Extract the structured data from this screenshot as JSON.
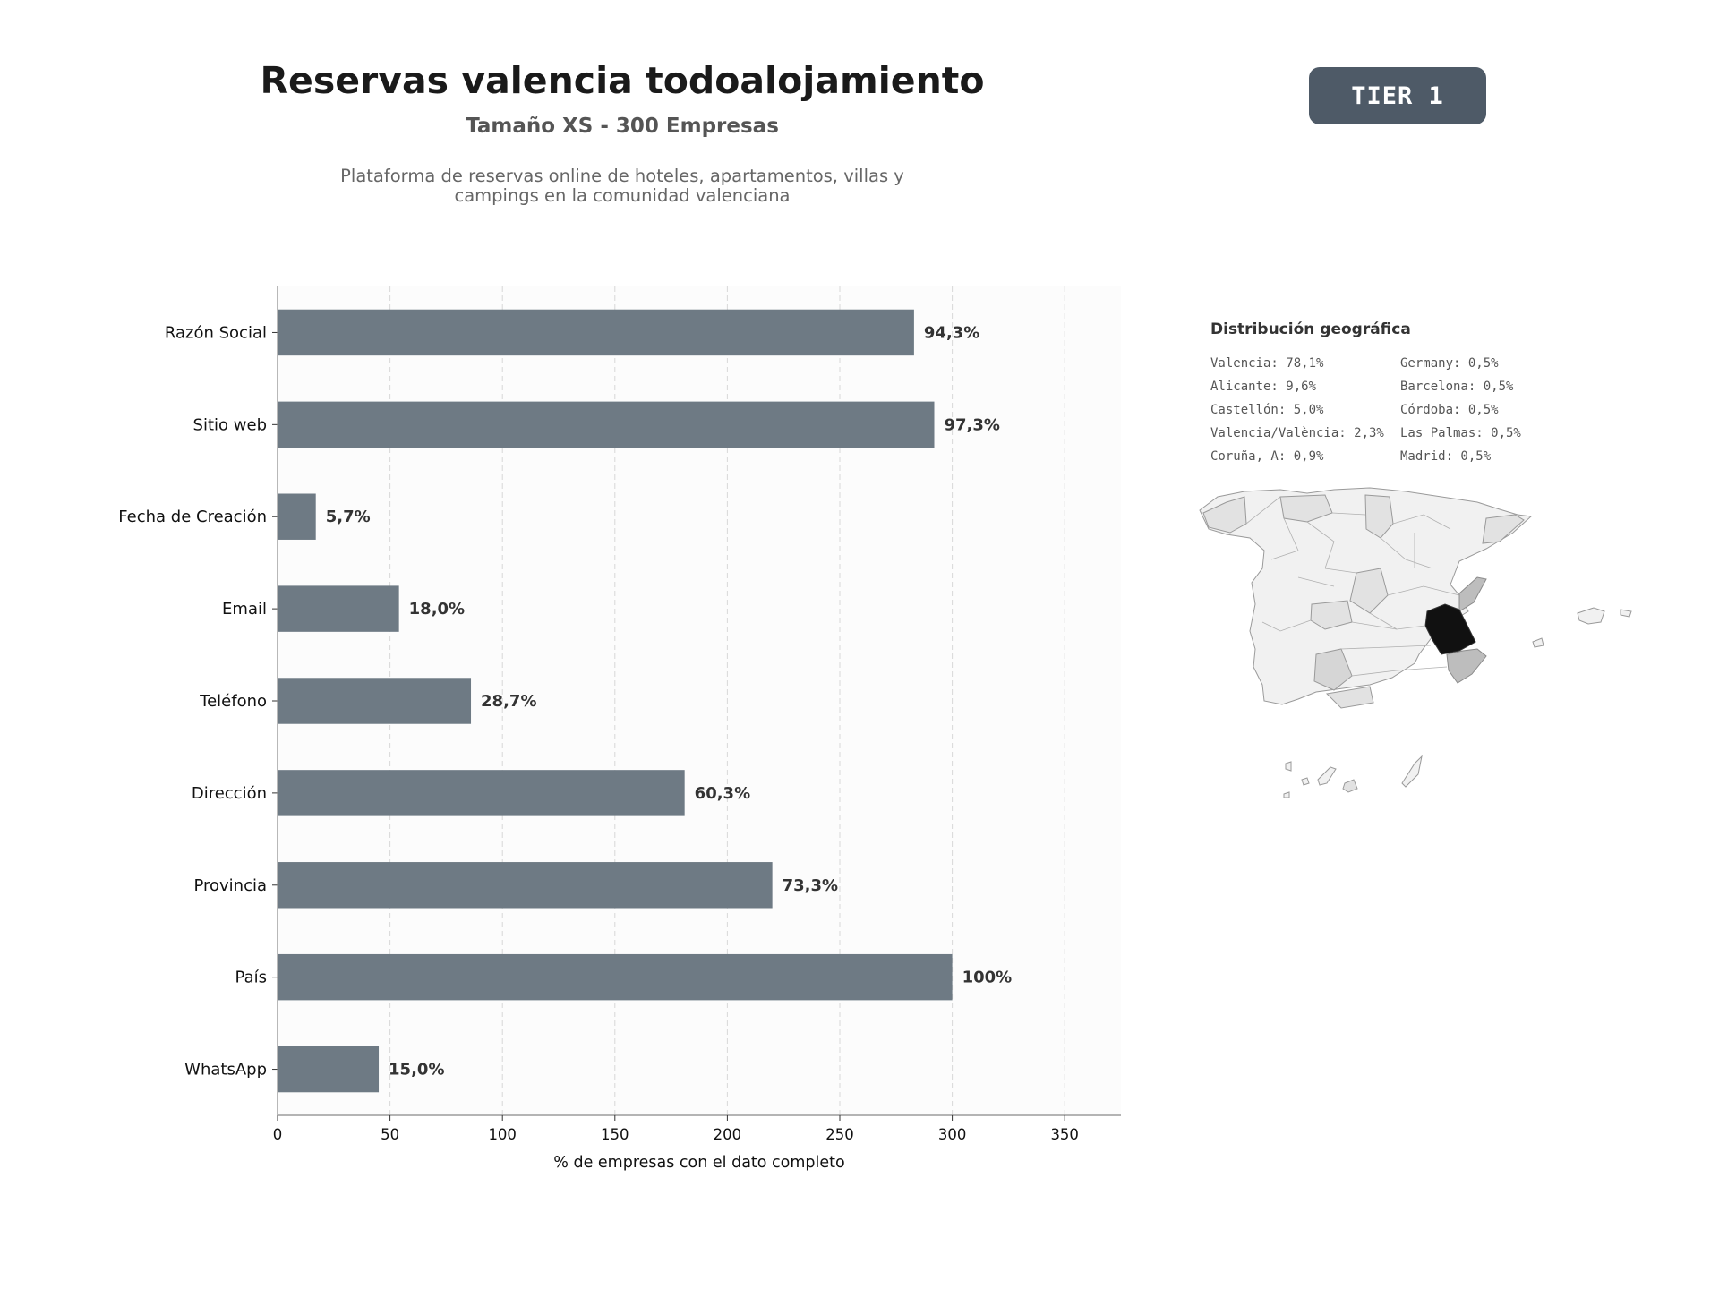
{
  "header": {
    "title": "Reservas valencia todoalojamiento",
    "subtitle": "Tamaño XS - 300 Empresas",
    "description_lines": [
      "Plataforma de reservas online de hoteles, apartamentos, villas y",
      "campings en la comunidad valenciana"
    ],
    "tier": "TIER 1"
  },
  "chart_data": {
    "type": "bar",
    "orientation": "horizontal",
    "title": "",
    "xlabel": "% de empresas con el dato completo",
    "ylabel": "",
    "xlim": [
      0,
      375
    ],
    "xticks": [
      0,
      50,
      100,
      150,
      200,
      250,
      300,
      350
    ],
    "grid": "x, dashed",
    "bar_color": "#6e7a84",
    "categories": [
      "Razón Social",
      "Sitio web",
      "Fecha de Creación",
      "Email",
      "Teléfono",
      "Dirección",
      "Provincia",
      "País",
      "WhatsApp"
    ],
    "values": [
      283,
      292,
      17,
      54,
      86,
      181,
      220,
      300,
      45
    ],
    "data_labels": [
      "94,3%",
      "97,3%",
      "5,7%",
      "18,0%",
      "28,7%",
      "60,3%",
      "73,3%",
      "100%",
      "15,0%"
    ]
  },
  "geo": {
    "title": "Distribución geográfica",
    "left_column": [
      "Valencia: 78,1%",
      "Alicante: 9,6%",
      "Castellón: 5,0%",
      "Valencia/València: 2,3%",
      "Coruña, A: 0,9%"
    ],
    "right_column": [
      "Germany: 0,5%",
      "Barcelona: 0,5%",
      "Córdoba: 0,5%",
      "Las Palmas: 0,5%",
      "Madrid: 0,5%"
    ],
    "map_colors": {
      "highlight": "#111111",
      "secondary": "#bdbdbd",
      "tertiary": "#d6d6d6",
      "light": "#e2e2e2",
      "base": "#f1f1f1",
      "border": "#9a9a9a"
    }
  }
}
